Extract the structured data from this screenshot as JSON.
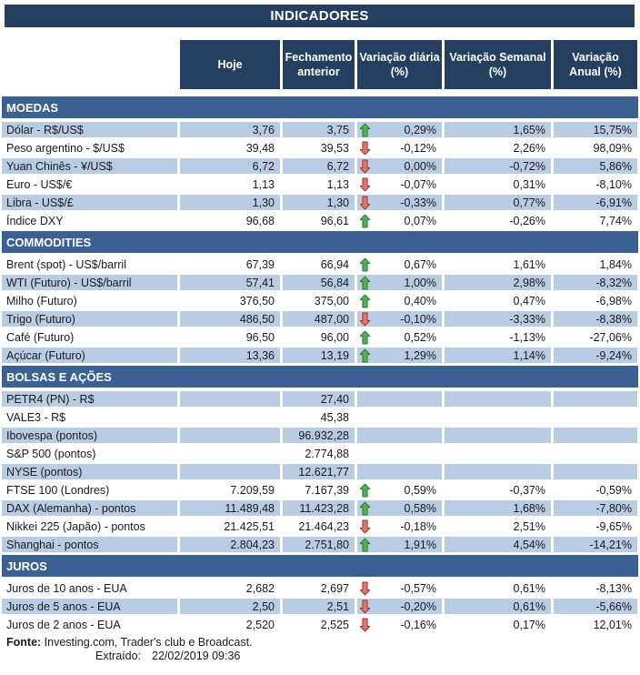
{
  "title": "INDICADORES",
  "columns": {
    "hoje": "Hoje",
    "fechamento": "Fechamento anterior",
    "var_diaria": "Variação diária (%)",
    "var_semanal": "Variação Semanal (%)",
    "var_anual": "Variação Anual (%)"
  },
  "sections": [
    {
      "name": "MOEDAS",
      "rows": [
        {
          "label": "Dólar - R$/US$",
          "hoje": "3,76",
          "fechamento": "3,75",
          "arrow": "up",
          "var_diaria": "0,29%",
          "var_semanal": "1,65%",
          "var_anual": "15,75%",
          "shaded": true
        },
        {
          "label": "Peso argentino - $/US$",
          "hoje": "39,48",
          "fechamento": "39,53",
          "arrow": "down",
          "var_diaria": "-0,12%",
          "var_semanal": "2,26%",
          "var_anual": "98,09%",
          "shaded": false
        },
        {
          "label": "Yuan Chinês - ¥/US$",
          "hoje": "6,72",
          "fechamento": "6,72",
          "arrow": "down",
          "var_diaria": "0,00%",
          "var_semanal": "-0,72%",
          "var_anual": "5,86%",
          "shaded": true
        },
        {
          "label": "Euro - US$/€",
          "hoje": "1,13",
          "fechamento": "1,13",
          "arrow": "down",
          "var_diaria": "-0,07%",
          "var_semanal": "0,31%",
          "var_anual": "-8,10%",
          "shaded": false
        },
        {
          "label": "Libra - US$/£",
          "hoje": "1,30",
          "fechamento": "1,30",
          "arrow": "down",
          "var_diaria": "-0,33%",
          "var_semanal": "0,77%",
          "var_anual": "-6,91%",
          "shaded": true
        },
        {
          "label": "Índice DXY",
          "hoje": "96,68",
          "fechamento": "96,61",
          "arrow": "up",
          "var_diaria": "0,07%",
          "var_semanal": "-0,26%",
          "var_anual": "7,74%",
          "shaded": false
        }
      ]
    },
    {
      "name": "COMMODITIES",
      "rows": [
        {
          "label": "Brent (spot) - US$/barril",
          "hoje": "67,39",
          "fechamento": "66,94",
          "arrow": "up",
          "var_diaria": "0,67%",
          "var_semanal": "1,61%",
          "var_anual": "1,84%",
          "shaded": false
        },
        {
          "label": "WTI (Futuro) - US$/barril",
          "hoje": "57,41",
          "fechamento": "56,84",
          "arrow": "up",
          "var_diaria": "1,00%",
          "var_semanal": "2,98%",
          "var_anual": "-8,32%",
          "shaded": true
        },
        {
          "label": "Milho (Futuro)",
          "hoje": "376,50",
          "fechamento": "375,00",
          "arrow": "up",
          "var_diaria": "0,40%",
          "var_semanal": "0,47%",
          "var_anual": "-6,98%",
          "shaded": false
        },
        {
          "label": "Trigo (Futuro)",
          "hoje": "486,50",
          "fechamento": "487,00",
          "arrow": "down",
          "var_diaria": "-0,10%",
          "var_semanal": "-3,33%",
          "var_anual": "-8,38%",
          "shaded": true
        },
        {
          "label": "Café (Futuro)",
          "hoje": "96,50",
          "fechamento": "96,00",
          "arrow": "up",
          "var_diaria": "0,52%",
          "var_semanal": "-1,13%",
          "var_anual": "-27,06%",
          "shaded": false
        },
        {
          "label": "Açúcar (Futuro)",
          "hoje": "13,36",
          "fechamento": "13,19",
          "arrow": "up",
          "var_diaria": "1,29%",
          "var_semanal": "1,14%",
          "var_anual": "-9,24%",
          "shaded": true
        }
      ]
    },
    {
      "name": "BOLSAS E AÇÕES",
      "rows": [
        {
          "label": "PETR4 (PN) - R$",
          "hoje": "",
          "fechamento": "27,40",
          "arrow": null,
          "var_diaria": "",
          "var_semanal": "",
          "var_anual": "",
          "shaded": true
        },
        {
          "label": "VALE3 - R$",
          "hoje": "",
          "fechamento": "45,38",
          "arrow": null,
          "var_diaria": "",
          "var_semanal": "",
          "var_anual": "",
          "shaded": false
        },
        {
          "label": "Ibovespa (pontos)",
          "hoje": "",
          "fechamento": "96.932,28",
          "arrow": null,
          "var_diaria": "",
          "var_semanal": "",
          "var_anual": "",
          "shaded": true
        },
        {
          "label": "S&P 500 (pontos)",
          "hoje": "",
          "fechamento": "2.774,88",
          "arrow": null,
          "var_diaria": "",
          "var_semanal": "",
          "var_anual": "",
          "shaded": false
        },
        {
          "label": "NYSE (pontos)",
          "hoje": "",
          "fechamento": "12.621,77",
          "arrow": null,
          "var_diaria": "",
          "var_semanal": "",
          "var_anual": "",
          "shaded": true
        },
        {
          "label": "FTSE 100 (Londres)",
          "hoje": "7.209,59",
          "fechamento": "7.167,39",
          "arrow": "up",
          "var_diaria": "0,59%",
          "var_semanal": "-0,37%",
          "var_anual": "-0,59%",
          "shaded": false
        },
        {
          "label": "DAX (Alemanha) - pontos",
          "hoje": "11.489,48",
          "fechamento": "11.423,28",
          "arrow": "up",
          "var_diaria": "0,58%",
          "var_semanal": "1,68%",
          "var_anual": "-7,80%",
          "shaded": true
        },
        {
          "label": "Nikkei 225 (Japão) - pontos",
          "hoje": "21.425,51",
          "fechamento": "21.464,23",
          "arrow": "down",
          "var_diaria": "-0,18%",
          "var_semanal": "2,51%",
          "var_anual": "-9,65%",
          "shaded": false
        },
        {
          "label": "Shanghai - pontos",
          "hoje": "2.804,23",
          "fechamento": "2.751,80",
          "arrow": "up",
          "var_diaria": "1,91%",
          "var_semanal": "4,54%",
          "var_anual": "-14,21%",
          "shaded": true
        }
      ]
    },
    {
      "name": "JUROS",
      "rows": [
        {
          "label": "Juros de 10 anos - EUA",
          "hoje": "2,682",
          "fechamento": "2,697",
          "arrow": "down",
          "var_diaria": "-0,57%",
          "var_semanal": "0,61%",
          "var_anual": "-8,13%",
          "shaded": false
        },
        {
          "label": "Juros de 5 anos - EUA",
          "hoje": "2,50",
          "fechamento": "2,51",
          "arrow": "down",
          "var_diaria": "-0,20%",
          "var_semanal": "0,61%",
          "var_anual": "-5,66%",
          "shaded": true
        },
        {
          "label": "Juros de 2 anos - EUA",
          "hoje": "2,520",
          "fechamento": "2,525",
          "arrow": "down",
          "var_diaria": "-0,16%",
          "var_semanal": "0,17%",
          "var_anual": "12,01%",
          "shaded": false
        }
      ]
    }
  ],
  "footer": {
    "fonte_label": "Fonte:",
    "fonte_text": "Investing.com, Trader's club e Broadcast.",
    "extraido_label": "Extraído:",
    "extraido_value": "22/02/2019 09:36"
  },
  "colors": {
    "navy": "#243F60",
    "section_blue": "#3A6191",
    "row_shaded": "#B8CCE4",
    "arrow_up_fill": "#54AE58",
    "arrow_up_stroke": "#2B7D33",
    "arrow_down_fill": "#E0756C",
    "arrow_down_stroke": "#9C3732"
  }
}
